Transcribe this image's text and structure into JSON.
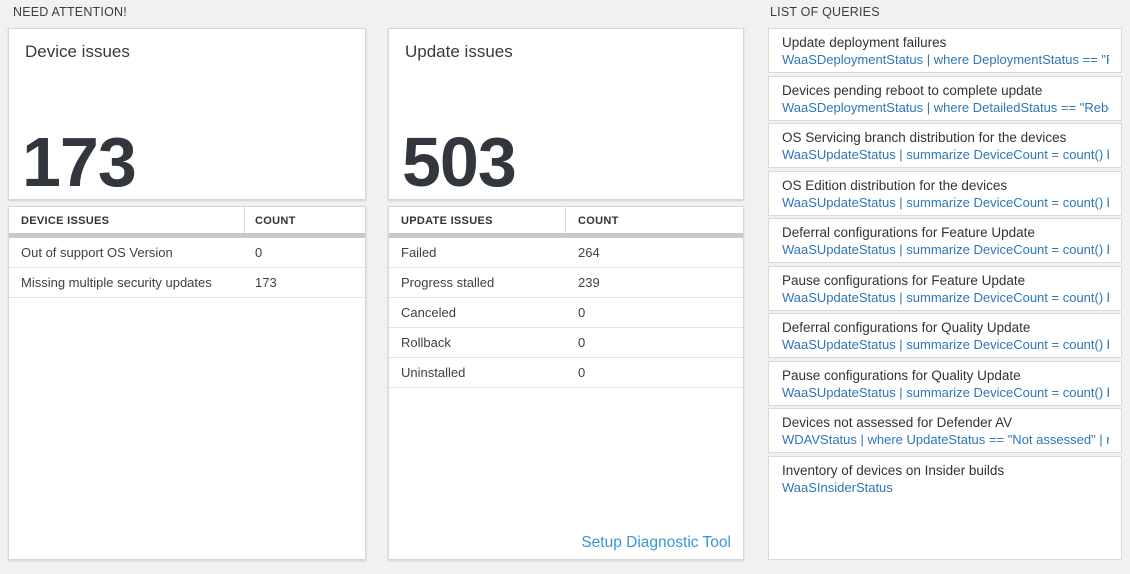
{
  "need_attention": {
    "label": "NEED ATTENTION!",
    "device_card": {
      "title": "Device issues",
      "value": "173",
      "table": {
        "header_main": "DEVICE ISSUES",
        "header_count": "COUNT",
        "rows": [
          {
            "label": "Out of support OS Version",
            "count": "0"
          },
          {
            "label": "Missing multiple security updates",
            "count": "173"
          }
        ]
      }
    },
    "update_card": {
      "title": "Update issues",
      "value": "503",
      "table": {
        "header_main": "UPDATE ISSUES",
        "header_count": "COUNT",
        "rows": [
          {
            "label": "Failed",
            "count": "264"
          },
          {
            "label": "Progress stalled",
            "count": "239"
          },
          {
            "label": "Canceled",
            "count": "0"
          },
          {
            "label": "Rollback",
            "count": "0"
          },
          {
            "label": "Uninstalled",
            "count": "0"
          }
        ],
        "footer_link": "Setup Diagnostic Tool"
      }
    }
  },
  "queries": {
    "label": "LIST OF QUERIES",
    "items": [
      {
        "title": "Update deployment failures",
        "query": "WaaSDeploymentStatus | where DeploymentStatus == \"Failed\" |..."
      },
      {
        "title": "Devices pending reboot to complete update",
        "query": "WaaSDeploymentStatus | where DetailedStatus == \"Reboot pend..."
      },
      {
        "title": "OS Servicing branch distribution for the devices",
        "query": "WaaSUpdateStatus | summarize DeviceCount = count() by OSSer..."
      },
      {
        "title": "OS Edition distribution for the devices",
        "query": "WaaSUpdateStatus | summarize DeviceCount = count() by OSEdit..."
      },
      {
        "title": "Deferral configurations for Feature Update",
        "query": "WaaSUpdateStatus | summarize DeviceCount = count() by Featur..."
      },
      {
        "title": "Pause configurations for Feature Update",
        "query": "WaaSUpdateStatus | summarize DeviceCount = count() by Featur..."
      },
      {
        "title": "Deferral configurations for Quality Update",
        "query": "WaaSUpdateStatus | summarize DeviceCount = count() by Qualit..."
      },
      {
        "title": "Pause configurations for Quality Update",
        "query": "WaaSUpdateStatus | summarize DeviceCount = count() by Qualit..."
      },
      {
        "title": "Devices not assessed for Defender AV",
        "query": "WDAVStatus | where UpdateStatus == \"Not assessed\" | render ta..."
      },
      {
        "title": "Inventory of devices on Insider builds",
        "query": "WaaSInsiderStatus"
      }
    ]
  },
  "colors": {
    "page_background": "#f1f1f2",
    "card_border": "#d6d6d6",
    "big_number_text": "#31373d",
    "query_link_blue": "#2e76b6",
    "diagnostic_link_blue": "#3897d3",
    "table_header_bar": "#c9c9c9"
  }
}
